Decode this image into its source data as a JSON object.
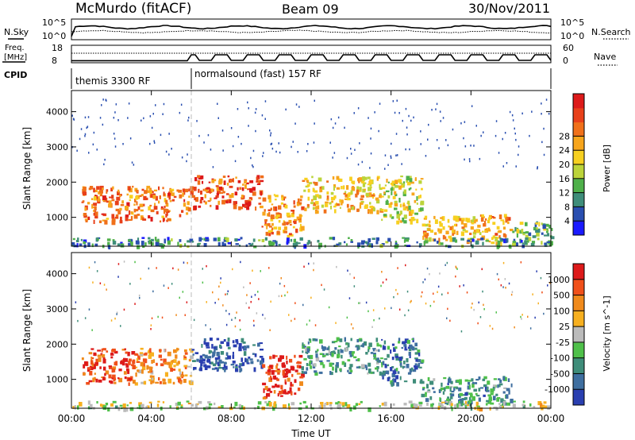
{
  "header": {
    "station": "McMurdo (fitACF)",
    "beam": "Beam 09",
    "date": "30/Nov/2011"
  },
  "status_panels": {
    "nsky_label": "N.Sky",
    "nsearch_label": "N.Search",
    "nsky_ticks": [
      "10^5",
      "10^0"
    ],
    "nsearch_ticks": [
      "10^5",
      "10^0"
    ],
    "freq_label_1": "Freq.",
    "freq_label_2": "[MHz]",
    "freq_ticks": [
      "18",
      "8"
    ],
    "nave_label": "Nave",
    "nave_ticks": [
      "60",
      "0"
    ],
    "cpid_label": "CPID",
    "cpid_segments": [
      {
        "label": "themis 3300 RF",
        "start_hour": 0,
        "end_hour": 6
      },
      {
        "label": "normalsound (fast) 157 RF",
        "start_hour": 6,
        "end_hour": 24
      }
    ]
  },
  "chart_data": [
    {
      "type": "heatmap",
      "name": "power",
      "ylabel": "Slant Range [km]",
      "xlabel": "",
      "x_ticks": [
        "00:00",
        "04:00",
        "08:00",
        "12:00",
        "16:00",
        "20:00",
        "00:00"
      ],
      "y_ticks": [
        "1000",
        "2000",
        "3000",
        "4000"
      ],
      "xlim": [
        0,
        24
      ],
      "ylim": [
        180,
        4600
      ],
      "colorbar_label": "Power [dB]",
      "colorbar_ticks": [
        "4",
        "8",
        "12",
        "16",
        "20",
        "24",
        "28"
      ],
      "colorbar_colors": [
        "#1a1aff",
        "#2a4fb0",
        "#3f8d7a",
        "#4fb04a",
        "#bcd43a",
        "#f7d020",
        "#f7a51c",
        "#f0701a",
        "#e8401a",
        "#dd1a1a"
      ],
      "echo_regions": [
        {
          "start_hour": 0.5,
          "end_hour": 6.0,
          "range_low": 900,
          "range_high": 1900,
          "level": 0.75
        },
        {
          "start_hour": 6.0,
          "end_hour": 9.5,
          "range_low": 1300,
          "range_high": 2200,
          "level": 0.85
        },
        {
          "start_hour": 9.5,
          "end_hour": 11.5,
          "range_low": 500,
          "range_high": 1700,
          "level": 0.7
        },
        {
          "start_hour": 11.5,
          "end_hour": 15.5,
          "range_low": 1200,
          "range_high": 2200,
          "level": 0.6
        },
        {
          "start_hour": 15.5,
          "end_hour": 17.5,
          "range_low": 900,
          "range_high": 2200,
          "level": 0.5
        },
        {
          "start_hour": 17.5,
          "end_hour": 22.0,
          "range_low": 300,
          "range_high": 1100,
          "level": 0.65
        },
        {
          "start_hour": 22.0,
          "end_hour": 24.0,
          "range_low": 300,
          "range_high": 900,
          "level": 0.35
        },
        {
          "start_hour": 0.0,
          "end_hour": 24.0,
          "range_low": 200,
          "range_high": 450,
          "level": 0.25
        }
      ]
    },
    {
      "type": "heatmap",
      "name": "velocity",
      "ylabel": "Slant Range [km]",
      "xlabel": "Time UT",
      "x_ticks": [
        "00:00",
        "04:00",
        "08:00",
        "12:00",
        "16:00",
        "20:00",
        "00:00"
      ],
      "y_ticks": [
        "1000",
        "2000",
        "3000",
        "4000"
      ],
      "xlim": [
        0,
        24
      ],
      "ylim": [
        180,
        4600
      ],
      "colorbar_label": "Velocity [m s^-1]",
      "colorbar_ticks": [
        "1000",
        "500",
        "100",
        "25",
        "-25",
        "-100",
        "-500",
        "-1000"
      ],
      "colorbar_colors": [
        "#2a3fb0",
        "#3f6fa0",
        "#3f8d7a",
        "#4fc04a",
        "#bbbbbb",
        "#f7b020",
        "#f08a1c",
        "#f0501a",
        "#dd1a1a"
      ],
      "echo_regions": [
        {
          "start_hour": 0.5,
          "end_hour": 3.0,
          "range_low": 900,
          "range_high": 1900,
          "level": 0.85
        },
        {
          "start_hour": 3.0,
          "end_hour": 6.0,
          "range_low": 900,
          "range_high": 1900,
          "level": 0.7
        },
        {
          "start_hour": 6.0,
          "end_hour": 9.5,
          "range_low": 1300,
          "range_high": 2200,
          "level": 0.1
        },
        {
          "start_hour": 9.5,
          "end_hour": 11.5,
          "range_low": 500,
          "range_high": 1700,
          "level": 0.9
        },
        {
          "start_hour": 11.5,
          "end_hour": 15.5,
          "range_low": 1200,
          "range_high": 2200,
          "level": 0.3
        },
        {
          "start_hour": 15.5,
          "end_hour": 17.5,
          "range_low": 900,
          "range_high": 2200,
          "level": 0.2
        },
        {
          "start_hour": 17.5,
          "end_hour": 22.0,
          "range_low": 300,
          "range_high": 1100,
          "level": 0.28
        },
        {
          "start_hour": 0.0,
          "end_hour": 24.0,
          "range_low": 200,
          "range_high": 400,
          "level": 0.5
        }
      ]
    }
  ]
}
